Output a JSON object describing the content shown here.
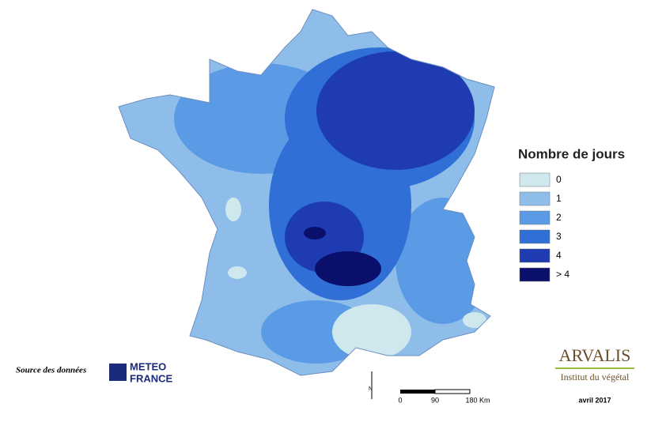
{
  "map": {
    "legend": {
      "title": "Nombre de jours",
      "items": [
        {
          "label": "0",
          "color": "#cfe8ee"
        },
        {
          "label": "1",
          "color": "#8fbde9"
        },
        {
          "label": "2",
          "color": "#5b9be6"
        },
        {
          "label": "3",
          "color": "#2f6fd6"
        },
        {
          "label": "4",
          "color": "#1f3bb2"
        },
        {
          "label": "> 4",
          "color": "#0a0f6b"
        }
      ]
    },
    "source": "Source des données",
    "meteo_logo": [
      "METEO",
      "FRANCE"
    ],
    "scale_bar": [
      "0",
      "90",
      "180 Km"
    ],
    "north": "N",
    "arvalis": {
      "name": "ARVALIS",
      "subtitle": "Institut du végétal"
    },
    "date": "avril 2017"
  }
}
